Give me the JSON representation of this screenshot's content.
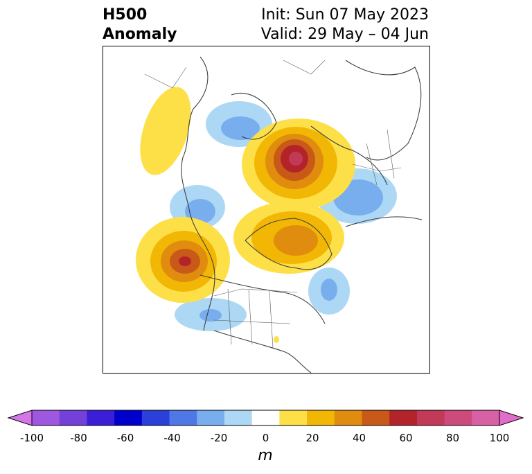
{
  "title": {
    "left_line1": "H500",
    "left_line2": "Anomaly",
    "right_line1": "Init: Sun 07 May 2023",
    "right_line2": "Valid: 29 May – 04 Jun"
  },
  "colorbar": {
    "unit": "m",
    "ticks": [
      "-100",
      "-80",
      "-60",
      "-40",
      "-20",
      "0",
      "20",
      "40",
      "60",
      "80",
      "100"
    ],
    "colors": [
      "#d377e8",
      "#a057e0",
      "#7340d9",
      "#3b1fd6",
      "#0000cd",
      "#2b3fd9",
      "#5077e6",
      "#79aeee",
      "#add8f5",
      "#ffffff",
      "#fde047",
      "#f2b705",
      "#e08c0f",
      "#c95918",
      "#b3242a",
      "#c13a58",
      "#cd4a7d",
      "#d861a6",
      "#e06ccc"
    ]
  },
  "map": {
    "projection": "north-polar-stereographic",
    "field": "500 hPa geopotential height anomaly"
  }
}
